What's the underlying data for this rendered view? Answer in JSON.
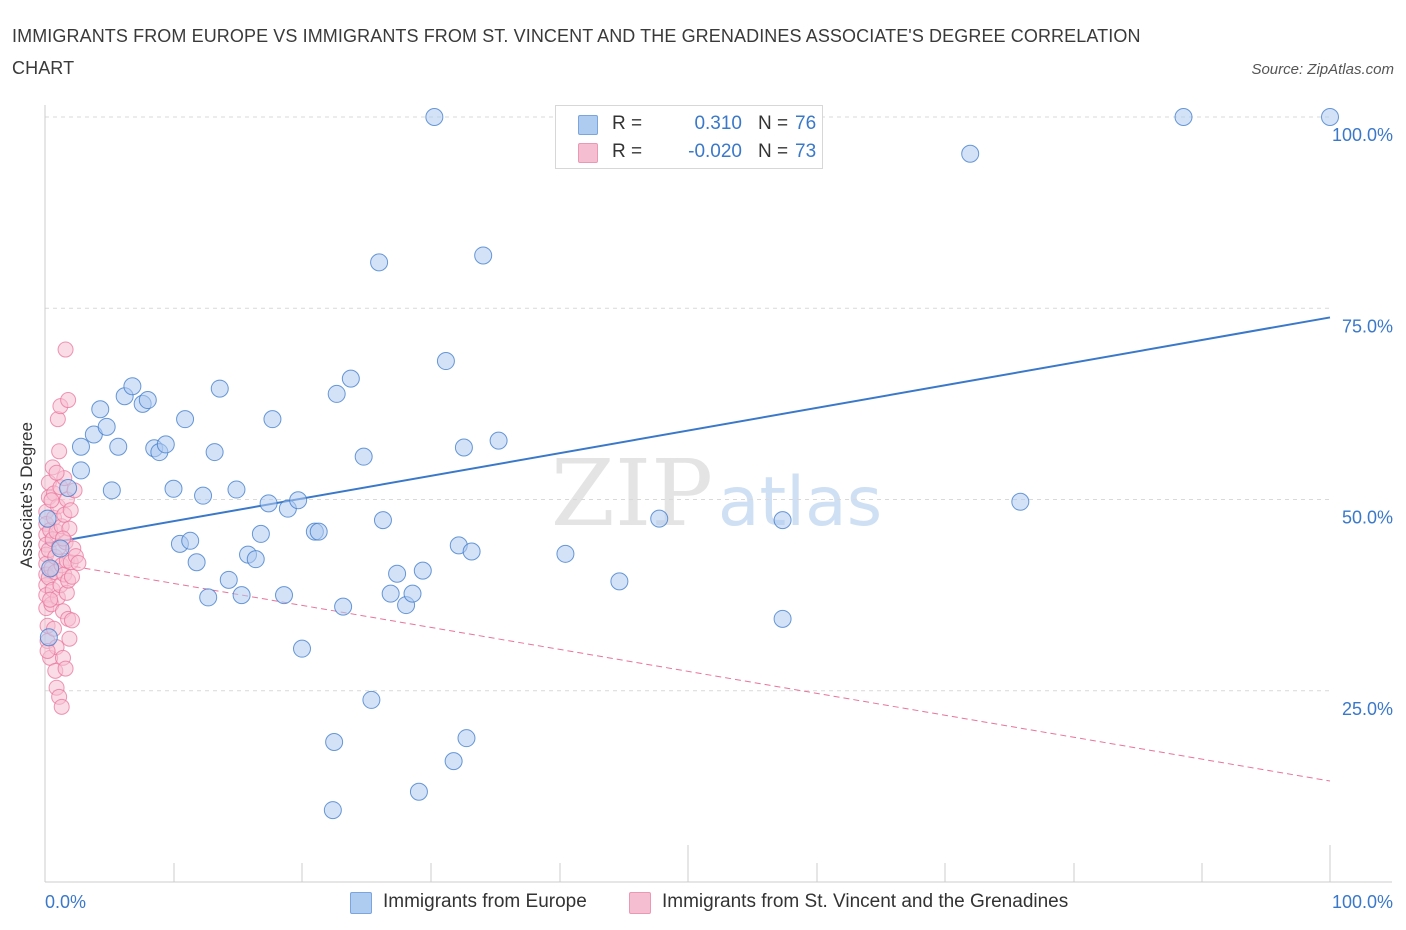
{
  "title": "IMMIGRANTS FROM EUROPE VS IMMIGRANTS FROM ST. VINCENT AND THE GRENADINES ASSOCIATE'S DEGREE CORRELATION CHART",
  "source": "Source: ZipAtlas.com",
  "watermark": {
    "zip": "ZIP",
    "atlas": "atlas"
  },
  "colors": {
    "blue": "#3a78c9",
    "blue_fill": "#aecbf0",
    "pink": "#e9749b",
    "pink_fill": "#f6bfd1",
    "grid": "#d9d9d9"
  },
  "legend_top": {
    "rows": [
      {
        "r_label": "R =",
        "r_value": "0.310",
        "n_label": "N =",
        "n_value": "76"
      },
      {
        "r_label": "R =",
        "r_value": "-0.020",
        "n_label": "N =",
        "n_value": "73"
      }
    ]
  },
  "legend_bottom": [
    "Immigrants from Europe",
    "Immigrants from St. Vincent and the Grenadines"
  ],
  "chart_data": {
    "type": "scatter",
    "title": "IMMIGRANTS FROM EUROPE VS IMMIGRANTS FROM ST. VINCENT AND THE GRENADINES ASSOCIATE'S DEGREE CORRELATION CHART",
    "xlabel": "",
    "ylabel": "Associate's Degree",
    "xlim": [
      0,
      100
    ],
    "ylim": [
      0,
      100
    ],
    "x_tick_labels": [
      "0.0%",
      "100.0%"
    ],
    "y_tick_labels": [
      "25.0%",
      "50.0%",
      "75.0%",
      "100.0%"
    ],
    "y_ticks": [
      25,
      50,
      75,
      100
    ],
    "grid": "horizontal dashed",
    "legend_position": "bottom",
    "series": [
      {
        "name": "Immigrants from Europe",
        "color": "#3a78c9",
        "trend": {
          "x": [
            0,
            100
          ],
          "y": [
            44.2,
            73.8
          ],
          "style": "solid"
        },
        "points": [
          {
            "x": 0.2,
            "y": 47.5
          },
          {
            "x": 0.4,
            "y": 41.0
          },
          {
            "x": 0.3,
            "y": 32.0
          },
          {
            "x": 1.8,
            "y": 51.5
          },
          {
            "x": 2.8,
            "y": 53.8
          },
          {
            "x": 2.8,
            "y": 56.9
          },
          {
            "x": 3.8,
            "y": 58.5
          },
          {
            "x": 4.3,
            "y": 61.8
          },
          {
            "x": 4.8,
            "y": 59.5
          },
          {
            "x": 5.2,
            "y": 51.2
          },
          {
            "x": 5.7,
            "y": 56.9
          },
          {
            "x": 6.2,
            "y": 63.5
          },
          {
            "x": 6.8,
            "y": 64.8
          },
          {
            "x": 7.6,
            "y": 62.5
          },
          {
            "x": 8.0,
            "y": 63.0
          },
          {
            "x": 8.5,
            "y": 56.7
          },
          {
            "x": 8.9,
            "y": 56.2
          },
          {
            "x": 9.4,
            "y": 57.2
          },
          {
            "x": 10.0,
            "y": 51.4
          },
          {
            "x": 10.5,
            "y": 44.2
          },
          {
            "x": 10.9,
            "y": 60.5
          },
          {
            "x": 11.3,
            "y": 44.6
          },
          {
            "x": 11.8,
            "y": 41.8
          },
          {
            "x": 12.3,
            "y": 50.5
          },
          {
            "x": 12.7,
            "y": 37.2
          },
          {
            "x": 13.2,
            "y": 56.2
          },
          {
            "x": 13.6,
            "y": 64.5
          },
          {
            "x": 14.3,
            "y": 39.5
          },
          {
            "x": 14.9,
            "y": 51.3
          },
          {
            "x": 15.3,
            "y": 37.5
          },
          {
            "x": 15.8,
            "y": 42.8
          },
          {
            "x": 16.4,
            "y": 42.2
          },
          {
            "x": 16.8,
            "y": 45.5
          },
          {
            "x": 17.4,
            "y": 49.5
          },
          {
            "x": 17.7,
            "y": 60.5
          },
          {
            "x": 18.6,
            "y": 37.5
          },
          {
            "x": 18.9,
            "y": 48.8
          },
          {
            "x": 19.7,
            "y": 49.9
          },
          {
            "x": 20.0,
            "y": 30.5
          },
          {
            "x": 21.0,
            "y": 45.8
          },
          {
            "x": 21.3,
            "y": 45.8
          },
          {
            "x": 22.7,
            "y": 63.8
          },
          {
            "x": 22.4,
            "y": 9.4
          },
          {
            "x": 22.5,
            "y": 18.3
          },
          {
            "x": 23.2,
            "y": 36.0
          },
          {
            "x": 23.8,
            "y": 65.8
          },
          {
            "x": 24.8,
            "y": 55.6
          },
          {
            "x": 25.4,
            "y": 23.8
          },
          {
            "x": 26.0,
            "y": 81.0
          },
          {
            "x": 26.3,
            "y": 47.3
          },
          {
            "x": 26.9,
            "y": 37.7
          },
          {
            "x": 27.4,
            "y": 40.3
          },
          {
            "x": 28.1,
            "y": 36.2
          },
          {
            "x": 28.6,
            "y": 37.7
          },
          {
            "x": 29.1,
            "y": 11.8
          },
          {
            "x": 29.4,
            "y": 40.7
          },
          {
            "x": 30.3,
            "y": 100.0
          },
          {
            "x": 31.2,
            "y": 68.1
          },
          {
            "x": 32.6,
            "y": 56.8
          },
          {
            "x": 31.8,
            "y": 15.8
          },
          {
            "x": 32.2,
            "y": 44.0
          },
          {
            "x": 32.8,
            "y": 18.8
          },
          {
            "x": 33.2,
            "y": 43.2
          },
          {
            "x": 34.1,
            "y": 81.9
          },
          {
            "x": 35.3,
            "y": 57.7
          },
          {
            "x": 40.5,
            "y": 42.9
          },
          {
            "x": 44.7,
            "y": 39.3
          },
          {
            "x": 47.8,
            "y": 47.5
          },
          {
            "x": 50.1,
            "y": 100.0
          },
          {
            "x": 57.4,
            "y": 47.3
          },
          {
            "x": 57.4,
            "y": 34.4
          },
          {
            "x": 72.0,
            "y": 95.2
          },
          {
            "x": 75.9,
            "y": 49.7
          },
          {
            "x": 88.6,
            "y": 100.0
          },
          {
            "x": 100.0,
            "y": 100.0
          },
          {
            "x": 1.2,
            "y": 43.6
          }
        ]
      },
      {
        "name": "Immigrants from St. Vincent and the Grenadines",
        "color": "#e9749b",
        "trend": {
          "x": [
            0,
            100
          ],
          "y": [
            41.9,
            13.2
          ],
          "style": "dashed"
        },
        "points": [
          {
            "x": 0.1,
            "y": 48.4
          },
          {
            "x": 0.1,
            "y": 46.8
          },
          {
            "x": 0.1,
            "y": 45.4
          },
          {
            "x": 0.1,
            "y": 44.1
          },
          {
            "x": 0.1,
            "y": 42.8
          },
          {
            "x": 0.1,
            "y": 41.6
          },
          {
            "x": 0.1,
            "y": 40.2
          },
          {
            "x": 0.1,
            "y": 38.8
          },
          {
            "x": 0.1,
            "y": 37.5
          },
          {
            "x": 0.1,
            "y": 35.8
          },
          {
            "x": 0.2,
            "y": 33.5
          },
          {
            "x": 0.2,
            "y": 31.5
          },
          {
            "x": 0.3,
            "y": 50.3
          },
          {
            "x": 0.3,
            "y": 52.2
          },
          {
            "x": 0.3,
            "y": 39.8
          },
          {
            "x": 0.3,
            "y": 43.4
          },
          {
            "x": 0.4,
            "y": 46.0
          },
          {
            "x": 0.4,
            "y": 29.3
          },
          {
            "x": 0.5,
            "y": 36.3
          },
          {
            "x": 0.5,
            "y": 41.0
          },
          {
            "x": 0.6,
            "y": 44.8
          },
          {
            "x": 0.6,
            "y": 54.2
          },
          {
            "x": 0.6,
            "y": 38.2
          },
          {
            "x": 0.7,
            "y": 50.8
          },
          {
            "x": 0.7,
            "y": 47.6
          },
          {
            "x": 0.7,
            "y": 33.1
          },
          {
            "x": 0.8,
            "y": 42.5
          },
          {
            "x": 0.8,
            "y": 40.5
          },
          {
            "x": 0.8,
            "y": 27.6
          },
          {
            "x": 0.9,
            "y": 25.4
          },
          {
            "x": 0.9,
            "y": 30.7
          },
          {
            "x": 0.9,
            "y": 45.8
          },
          {
            "x": 1.0,
            "y": 60.5
          },
          {
            "x": 1.0,
            "y": 37.2
          },
          {
            "x": 1.0,
            "y": 49.1
          },
          {
            "x": 1.1,
            "y": 56.3
          },
          {
            "x": 1.1,
            "y": 43.8
          },
          {
            "x": 1.1,
            "y": 24.2
          },
          {
            "x": 1.2,
            "y": 62.2
          },
          {
            "x": 1.2,
            "y": 38.8
          },
          {
            "x": 1.2,
            "y": 51.6
          },
          {
            "x": 1.3,
            "y": 46.5
          },
          {
            "x": 1.3,
            "y": 41.4
          },
          {
            "x": 1.3,
            "y": 22.9
          },
          {
            "x": 1.4,
            "y": 29.3
          },
          {
            "x": 1.4,
            "y": 35.4
          },
          {
            "x": 1.5,
            "y": 52.8
          },
          {
            "x": 1.5,
            "y": 48.0
          },
          {
            "x": 1.5,
            "y": 40.2
          },
          {
            "x": 1.6,
            "y": 69.6
          },
          {
            "x": 1.6,
            "y": 44.4
          },
          {
            "x": 1.6,
            "y": 27.9
          },
          {
            "x": 1.7,
            "y": 37.8
          },
          {
            "x": 1.7,
            "y": 42.0
          },
          {
            "x": 1.7,
            "y": 50.0
          },
          {
            "x": 1.8,
            "y": 63.0
          },
          {
            "x": 1.8,
            "y": 34.4
          },
          {
            "x": 1.8,
            "y": 39.4
          },
          {
            "x": 1.9,
            "y": 46.2
          },
          {
            "x": 1.9,
            "y": 31.8
          },
          {
            "x": 2.0,
            "y": 41.8
          },
          {
            "x": 2.0,
            "y": 48.6
          },
          {
            "x": 2.1,
            "y": 34.2
          },
          {
            "x": 2.1,
            "y": 39.9
          },
          {
            "x": 2.2,
            "y": 43.6
          },
          {
            "x": 2.3,
            "y": 51.2
          },
          {
            "x": 2.4,
            "y": 42.6
          },
          {
            "x": 2.6,
            "y": 41.7
          },
          {
            "x": 0.2,
            "y": 30.2
          },
          {
            "x": 0.4,
            "y": 36.9
          },
          {
            "x": 0.5,
            "y": 49.9
          },
          {
            "x": 0.9,
            "y": 53.5
          },
          {
            "x": 1.4,
            "y": 44.9
          }
        ]
      }
    ]
  }
}
